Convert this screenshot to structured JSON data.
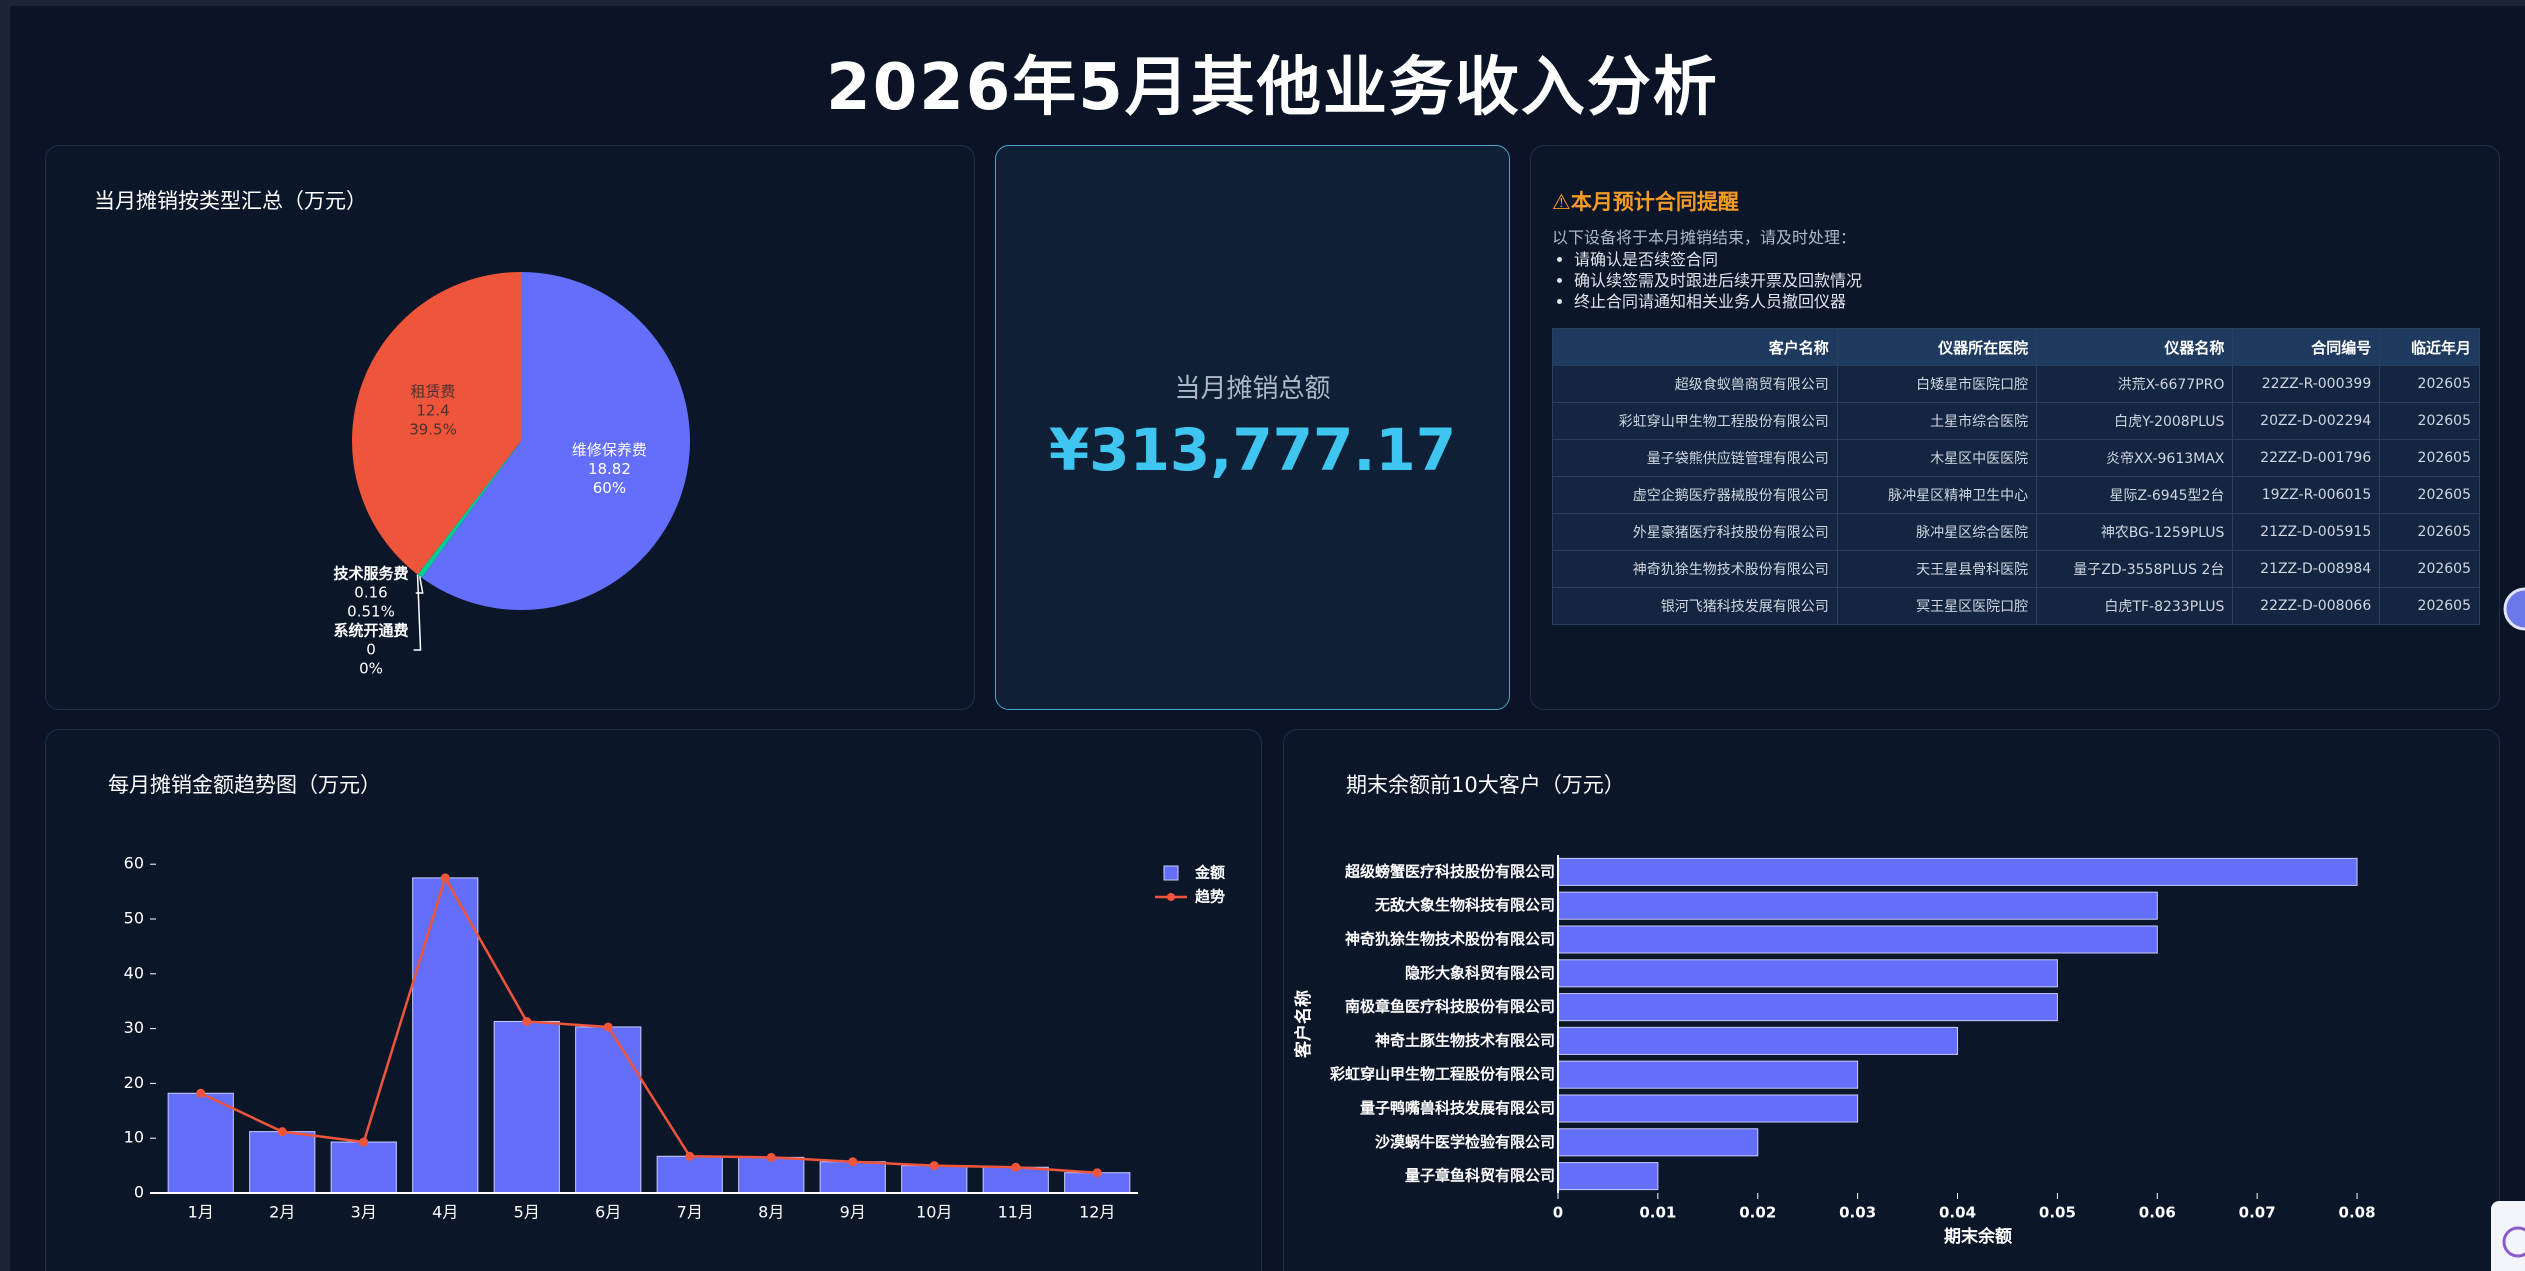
{
  "title": "2026年5月其他业务收入分析",
  "kpi": {
    "label": "当月摊销总额",
    "value": "¥313,777.17"
  },
  "notice": {
    "title": "⚠本月预计合同提醒",
    "intro": "以下设备将于本月摊销结束，请及时处理：",
    "items": [
      "请确认是否续签合同",
      "确认续签需及时跟进后续开票及回款情况",
      "终止合同请通知相关业务人员撤回仪器"
    ]
  },
  "table": {
    "columns": [
      "客户名称",
      "仪器所在医院",
      "仪器名称",
      "合同编号",
      "临近年月"
    ],
    "rows": [
      [
        "超级食蚁兽商贸有限公司",
        "白矮星市医院口腔",
        "洪荒X-6677PRO",
        "22ZZ-R-000399",
        "202605"
      ],
      [
        "彩虹穿山甲生物工程股份有限公司",
        "土星市综合医院",
        "白虎Y-2008PLUS",
        "20ZZ-D-002294",
        "202605"
      ],
      [
        "量子袋熊供应链管理有限公司",
        "木星区中医医院",
        "炎帝XX-9613MAX",
        "22ZZ-D-001796",
        "202605"
      ],
      [
        "虚空企鹅医疗器械股份有限公司",
        "脉冲星区精神卫生中心",
        "星际Z-6945型2台",
        "19ZZ-R-006015",
        "202605"
      ],
      [
        "外星豪猪医疗科技股份有限公司",
        "脉冲星区综合医院",
        "神农BG-1259PLUS",
        "21ZZ-D-005915",
        "202605"
      ],
      [
        "神奇犰狳生物技术股份有限公司",
        "天王星县骨科医院",
        "量子ZD-3558PLUS 2台",
        "21ZZ-D-008984",
        "202605"
      ],
      [
        "银河飞猪科技发展有限公司",
        "冥王星区医院口腔",
        "白虎TF-8233PLUS",
        "22ZZ-D-008066",
        "202605"
      ]
    ]
  },
  "chart_data": [
    {
      "type": "pie",
      "title": "当月摊销按类型汇总（万元）",
      "categories": [
        "维修保养费",
        "技术服务费",
        "系统开通费",
        "租赁费"
      ],
      "values": [
        18.82,
        0.16,
        0,
        12.4
      ],
      "percent_labels": [
        "60%",
        "0.51%",
        "0%",
        "39.5%"
      ],
      "colors": [
        "#636efa",
        "#00cc96",
        "#ab63fa",
        "#ef553b"
      ]
    },
    {
      "type": "bar",
      "title": "每月摊销金额趋势图（万元）",
      "categories": [
        "1月",
        "2月",
        "3月",
        "4月",
        "5月",
        "6月",
        "7月",
        "8月",
        "9月",
        "10月",
        "11月",
        "12月"
      ],
      "series": [
        {
          "name": "金额",
          "type": "bar",
          "color": "#636efa",
          "values": [
            18.2,
            11.2,
            9.3,
            57.5,
            31.3,
            30.3,
            6.7,
            6.5,
            5.7,
            5.0,
            4.7,
            3.7
          ]
        },
        {
          "name": "趋势",
          "type": "line",
          "color": "#ef553b",
          "values": [
            18.2,
            11.2,
            9.3,
            57.5,
            31.3,
            30.3,
            6.7,
            6.5,
            5.7,
            5.0,
            4.7,
            3.7
          ]
        }
      ],
      "ylim": [
        0,
        61
      ],
      "yticks": [
        0,
        10,
        20,
        30,
        40,
        50,
        60
      ],
      "grid": false,
      "legend": "top-right"
    },
    {
      "type": "hbar",
      "title": "期末余额前10大客户（万元）",
      "xlabel": "期末余额",
      "ylabel": "客户名称",
      "categories": [
        "超级螃蟹医疗科技股份有限公司",
        "无敌大象生物科技有限公司",
        "神奇犰狳生物技术股份有限公司",
        "隐形大象科贸有限公司",
        "南极章鱼医疗科技股份有限公司",
        "神奇土豚生物技术有限公司",
        "彩虹穿山甲生物工程股份有限公司",
        "量子鸭嘴兽科技发展有限公司",
        "沙漠蜗牛医学检验有限公司",
        "量子章鱼科贸有限公司"
      ],
      "values": [
        0.08,
        0.06,
        0.06,
        0.05,
        0.05,
        0.04,
        0.03,
        0.03,
        0.02,
        0.01
      ],
      "color": "#636efa",
      "xlim": [
        0,
        0.085
      ],
      "xticks": [
        0,
        0.01,
        0.02,
        0.03,
        0.04,
        0.05,
        0.06,
        0.07,
        0.08
      ],
      "grid": false
    }
  ]
}
